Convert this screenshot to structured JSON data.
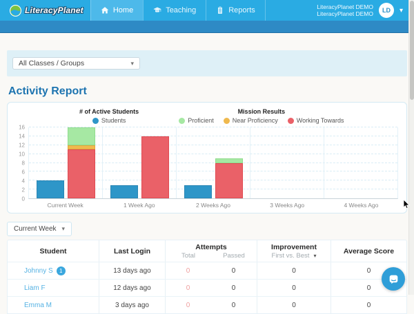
{
  "header": {
    "brand": "LiteracyPlanet",
    "nav": [
      {
        "label": "Home",
        "active": true
      },
      {
        "label": "Teaching",
        "active": false
      },
      {
        "label": "Reports",
        "active": false
      }
    ],
    "account_line1": "LiteracyPlanet DEMO",
    "account_line2": "LiteracyPlanet DEMO",
    "avatar_initials": "LD"
  },
  "filters": {
    "class_group_selected": "All Classes / Groups"
  },
  "page_title": "Activity Report",
  "chart_data": {
    "type": "bar",
    "title": "",
    "categories": [
      "Current Week",
      "1 Week Ago",
      "2 Weeks Ago",
      "3 Weeks Ago",
      "4 Weeks Ago"
    ],
    "legend_groups": [
      {
        "title": "# of Active Students",
        "items": [
          {
            "label": "Students",
            "color": "#2e96c8"
          }
        ]
      },
      {
        "title": "Mission Results",
        "items": [
          {
            "label": "Proficient",
            "color": "#a6e8a3"
          },
          {
            "label": "Near Proficiency",
            "color": "#efb94e"
          },
          {
            "label": "Working Towards",
            "color": "#ea6168"
          }
        ]
      }
    ],
    "series": [
      {
        "name": "Students",
        "stack": "students",
        "color": "#2e96c8",
        "border": "#2a86b4",
        "values": [
          4,
          3,
          3,
          0,
          0
        ]
      },
      {
        "name": "Working Towards",
        "stack": "missions",
        "color": "#ea6168",
        "border": "#e04b52",
        "values": [
          11,
          14,
          8,
          0,
          0
        ]
      },
      {
        "name": "Near Proficiency",
        "stack": "missions",
        "color": "#efb94e",
        "border": "#e0a93c",
        "values": [
          1,
          0,
          0,
          0,
          0
        ]
      },
      {
        "name": "Proficient",
        "stack": "missions",
        "color": "#a6e8a3",
        "border": "#90dc8d",
        "values": [
          4,
          0,
          1,
          0,
          0
        ]
      }
    ],
    "ylim": [
      0,
      16
    ],
    "ytick_step": 2,
    "grid": true,
    "legend_position": "top",
    "xlabel": "",
    "ylabel": ""
  },
  "week_filter": {
    "selected": "Current Week"
  },
  "table": {
    "columns": [
      {
        "label": "Student"
      },
      {
        "label": "Last Login"
      },
      {
        "label": "Attempts",
        "children": [
          "Total",
          "Passed"
        ]
      },
      {
        "label": "Improvement",
        "children": [
          "First vs. Best"
        ]
      },
      {
        "label": "Average Score"
      }
    ],
    "rows": [
      {
        "student": "Johnny S",
        "badge": "1",
        "last_login": "13 days ago",
        "attempts_total": "0",
        "attempts_passed": "0",
        "improvement": "0",
        "average_score": "0"
      },
      {
        "student": "Liam F",
        "badge": null,
        "last_login": "12 days ago",
        "attempts_total": "0",
        "attempts_passed": "0",
        "improvement": "0",
        "average_score": "0"
      },
      {
        "student": "Emma M",
        "badge": null,
        "last_login": "3 days ago",
        "attempts_total": "0",
        "attempts_passed": "0",
        "improvement": "0",
        "average_score": "0"
      }
    ]
  },
  "colors": {
    "nav": "#2aabe3",
    "nav_active_tab": "#4db9ea",
    "subheader": "#2e8ac5",
    "heading": "#1d74b0",
    "link": "#55b2e3",
    "attempts_total_zero": "#ef9f9f",
    "chat_button": "#2f9ed8"
  }
}
